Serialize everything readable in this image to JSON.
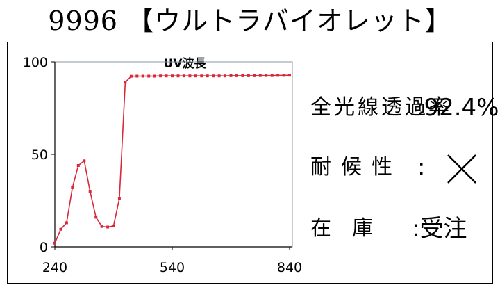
{
  "header": {
    "title": "9996 【ウルトラバイオレット】"
  },
  "colors": {
    "series": "#d8283a",
    "plot_border": "#8a9aa5",
    "text": "#000000"
  },
  "chart_data": {
    "type": "line",
    "title": "UV波長",
    "xlabel": "",
    "ylabel": "",
    "xlim": [
      240,
      840
    ],
    "ylim": [
      0,
      100
    ],
    "x_ticks": [
      "240",
      "540",
      "840"
    ],
    "y_ticks": [
      "0",
      "50",
      "100"
    ],
    "grid": false,
    "series": [
      {
        "x": [
          240,
          255,
          270,
          285,
          300,
          315,
          330,
          345,
          360,
          375,
          390,
          405,
          420,
          435,
          450,
          465,
          480,
          495,
          510,
          525,
          540,
          555,
          570,
          585,
          600,
          615,
          630,
          645,
          660,
          675,
          690,
          705,
          720,
          735,
          750,
          765,
          780,
          795,
          810,
          825,
          840
        ],
        "values": [
          2,
          9.5,
          13,
          32,
          44,
          46.5,
          30,
          16,
          11,
          10.7,
          11.3,
          26,
          89,
          92.2,
          92.3,
          92.3,
          92.3,
          92.3,
          92.4,
          92.4,
          92.4,
          92.4,
          92.4,
          92.4,
          92.4,
          92.4,
          92.4,
          92.4,
          92.4,
          92.4,
          92.5,
          92.5,
          92.5,
          92.5,
          92.5,
          92.6,
          92.6,
          92.6,
          92.7,
          92.7,
          92.8
        ]
      }
    ]
  },
  "info": {
    "transmittance_label": "全光線透過率",
    "transmittance_value": ":92.4%",
    "weather_label": "耐候性",
    "weather_colon": ":",
    "weather_mark": "cross-mark-icon",
    "stock_label": "在庫",
    "stock_value": ":受注"
  }
}
